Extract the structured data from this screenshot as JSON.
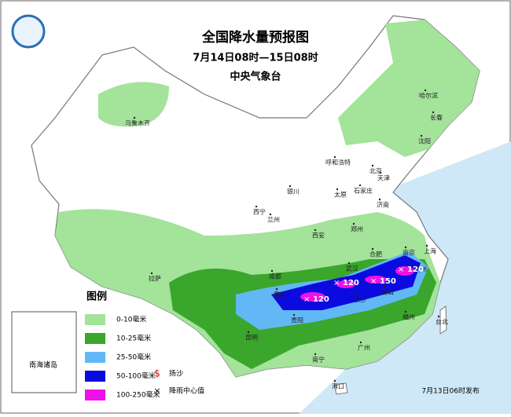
{
  "header": {
    "title": "全国降水量预报图",
    "period": "7月14日08时—15日08时",
    "issuer": "中央气象台"
  },
  "legend": {
    "title": "图例",
    "items": [
      {
        "label": "0-10毫米",
        "color": "#a3e39a"
      },
      {
        "label": "10-25毫米",
        "color": "#3aa62c"
      },
      {
        "label": "25-50毫米",
        "color": "#62b8f5"
      },
      {
        "label": "50-100毫米",
        "color": "#0b0be0"
      },
      {
        "label": "100-250毫米",
        "color": "#f010e8"
      }
    ],
    "symbols": [
      {
        "symbol": "$",
        "label": "扬沙"
      },
      {
        "symbol": "×",
        "label": "降雨中心值"
      }
    ]
  },
  "cities": [
    "乌鲁木齐",
    "哈尔滨",
    "长春",
    "沈阳",
    "呼和浩特",
    "北京",
    "天津",
    "银川",
    "太原",
    "石家庄",
    "西宁",
    "兰州",
    "济南",
    "郑州",
    "西安",
    "合肥",
    "南京",
    "上海",
    "杭州",
    "成都",
    "武汉",
    "拉萨",
    "重庆",
    "长沙",
    "南昌",
    "贵阳",
    "福州",
    "台北",
    "昆明",
    "南宁",
    "广州",
    "海口"
  ],
  "rain_centers": [
    "120",
    "120",
    "150",
    "120"
  ],
  "inset_label": "南海诸岛",
  "footer": "7月13日06时发布"
}
